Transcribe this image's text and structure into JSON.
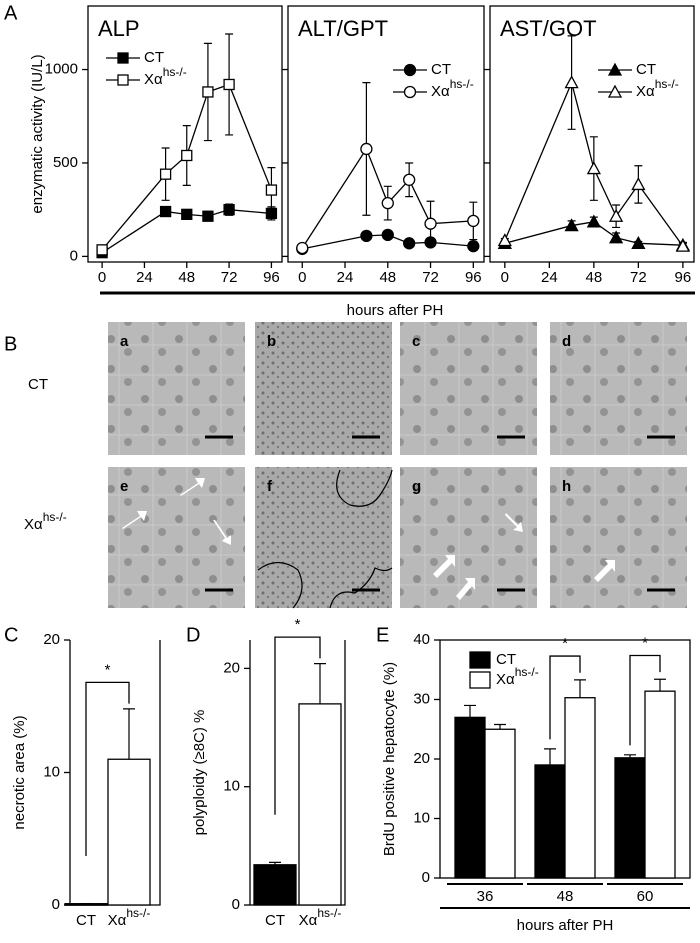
{
  "panel_labels": [
    "A",
    "B",
    "C",
    "D",
    "E"
  ],
  "panel_b": {
    "row_labels": [
      {
        "text": "CT"
      },
      {
        "text": "Xα",
        "sup": "hs-/-"
      }
    ],
    "image_labels": [
      "a",
      "b",
      "c",
      "d",
      "e",
      "f",
      "g",
      "h"
    ]
  },
  "chart_data": [
    {
      "type": "line",
      "title": "ALP",
      "ylabel": "enzymatic activity (IU/L)",
      "xlabel": "hours after PH",
      "marker": "square",
      "x": [
        0,
        36,
        48,
        60,
        72,
        96
      ],
      "xlim": [
        -8,
        102
      ],
      "xticks": [
        0,
        24,
        48,
        72,
        96
      ],
      "ylim": [
        -30,
        1340
      ],
      "yticks": [
        0,
        500,
        1000
      ],
      "ytick_labels": true,
      "series": [
        {
          "name": "CT",
          "color": "#000000",
          "fill": "#000000",
          "values": [
            20,
            240,
            225,
            215,
            250,
            230
          ],
          "errors": [
            10,
            20,
            15,
            15,
            30,
            35
          ]
        },
        {
          "name": "Xα",
          "name_sup": "hs-/-",
          "color": "#000000",
          "fill": "#ffffff",
          "values": [
            35,
            440,
            540,
            880,
            920,
            355
          ],
          "errors": [
            10,
            140,
            160,
            260,
            270,
            120
          ]
        }
      ]
    },
    {
      "type": "line",
      "title": "ALT/GPT",
      "marker": "circle",
      "x": [
        0,
        36,
        48,
        60,
        72,
        96
      ],
      "xlim": [
        -8,
        102
      ],
      "xticks": [
        0,
        24,
        48,
        72,
        96
      ],
      "ylim": [
        -30,
        1340
      ],
      "yticks": [
        0,
        500,
        1000
      ],
      "ytick_labels": false,
      "series": [
        {
          "name": "CT",
          "color": "#000000",
          "fill": "#000000",
          "values": [
            40,
            110,
            115,
            70,
            75,
            55
          ],
          "errors": [
            5,
            10,
            10,
            8,
            8,
            8
          ]
        },
        {
          "name": "Xα",
          "name_sup": "hs-/-",
          "color": "#000000",
          "fill": "#ffffff",
          "values": [
            45,
            575,
            285,
            410,
            175,
            190
          ],
          "errors": [
            8,
            355,
            90,
            90,
            120,
            100
          ]
        }
      ]
    },
    {
      "type": "line",
      "title": "AST/GOT",
      "marker": "triangle",
      "x": [
        0,
        36,
        48,
        60,
        72,
        96
      ],
      "xlim": [
        -8,
        102
      ],
      "xticks": [
        0,
        24,
        48,
        72,
        96
      ],
      "ylim": [
        -30,
        1340
      ],
      "yticks": [
        0,
        500,
        1000
      ],
      "ytick_labels": false,
      "series": [
        {
          "name": "CT",
          "color": "#000000",
          "fill": "#000000",
          "values": [
            70,
            165,
            185,
            100,
            70,
            60
          ],
          "errors": [
            10,
            25,
            25,
            25,
            10,
            10
          ]
        },
        {
          "name": "Xα",
          "name_sup": "hs-/-",
          "color": "#000000",
          "fill": "#ffffff",
          "values": [
            85,
            930,
            470,
            215,
            385,
            55
          ],
          "errors": [
            10,
            250,
            170,
            60,
            100,
            20
          ]
        }
      ]
    },
    {
      "type": "bar",
      "ylabel": "necrotic area (%)",
      "categories": [
        "CT",
        "Xα"
      ],
      "category_superscripts": {
        "1": "hs-/-"
      },
      "values": [
        0.1,
        11
      ],
      "errors": [
        0,
        3.8
      ],
      "colors": [
        "#000000",
        "#ffffff"
      ],
      "ylim": [
        0,
        20
      ],
      "yticks": [
        0,
        10,
        20
      ],
      "annotations": [
        {
          "text": "*"
        }
      ]
    },
    {
      "type": "bar",
      "ylabel": "polyploidy (≥8C) %",
      "categories": [
        "CT",
        "Xα"
      ],
      "category_superscripts": {
        "1": "hs-/-"
      },
      "values": [
        3.4,
        17
      ],
      "errors": [
        0.2,
        3.4
      ],
      "colors": [
        "#000000",
        "#ffffff"
      ],
      "ylim": [
        0,
        22.4
      ],
      "yticks": [
        0,
        10,
        20
      ],
      "annotations": [
        {
          "text": "*"
        }
      ]
    },
    {
      "type": "grouped_bar",
      "ylabel": "BrdU positive hepatocyte (%)",
      "xlabel": "hours after PH",
      "categories": [
        "36",
        "48",
        "60"
      ],
      "ylim": [
        0,
        40
      ],
      "yticks": [
        0,
        10,
        20,
        30,
        40
      ],
      "series": [
        {
          "name": "CT",
          "color": "#000000",
          "values": [
            27,
            19,
            20.2
          ],
          "errors": [
            2,
            2.7,
            0.5
          ]
        },
        {
          "name": "Xα",
          "name_sup": "hs-/-",
          "color": "#ffffff",
          "values": [
            25,
            30.3,
            31.4
          ],
          "errors": [
            0.8,
            3,
            2
          ]
        }
      ],
      "annotations": [
        {
          "text": "*",
          "category": 1
        },
        {
          "text": "*",
          "category": 2
        }
      ]
    }
  ]
}
